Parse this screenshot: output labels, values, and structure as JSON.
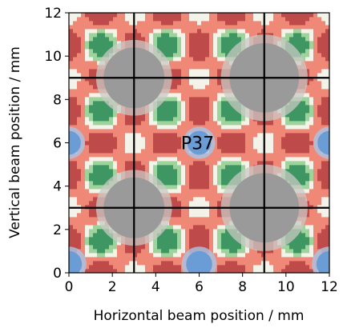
{
  "chart_data": {
    "type": "heatmap",
    "title": "",
    "xlabel": "Horizontal beam position / mm",
    "ylabel": "Vertical beam position / mm",
    "xlim": [
      0,
      12
    ],
    "ylim": [
      0,
      12
    ],
    "xticks": [
      0,
      2,
      4,
      6,
      8,
      10,
      12
    ],
    "yticks": [
      0,
      2,
      4,
      6,
      8,
      10,
      12
    ],
    "grid_lines": {
      "x": [
        3,
        9
      ],
      "y": [
        3,
        9
      ],
      "color": "#000000"
    },
    "annotation": {
      "text": "P37",
      "x": 6,
      "y": 6
    },
    "colormap": {
      "high": "#bf4a4a",
      "mid_high": "#f08878",
      "neutral": "#f3f3ea",
      "mid_low": "#9ed49c",
      "low": "#3e9662",
      "gray_regions": "#9a9a9a",
      "blue_regions": "#6a9cd6"
    },
    "gray_regions": [
      {
        "x": 3,
        "y": 9,
        "r": 1.4
      },
      {
        "x": 9,
        "y": 9,
        "r": 1.6
      },
      {
        "x": 3,
        "y": 3,
        "r": 1.4
      },
      {
        "x": 9,
        "y": 3,
        "r": 1.6
      }
    ],
    "blue_regions": [
      {
        "x": 6,
        "y": 6,
        "r": 0.55
      },
      {
        "x": 0,
        "y": 6,
        "r": 0.55
      },
      {
        "x": 12,
        "y": 6,
        "r": 0.55
      },
      {
        "x": 0,
        "y": 0.4,
        "r": 0.6
      },
      {
        "x": 6,
        "y": 0.4,
        "r": 0.6
      },
      {
        "x": 12,
        "y": 0.4,
        "r": 0.6
      }
    ],
    "grid": false,
    "legend": "none"
  }
}
